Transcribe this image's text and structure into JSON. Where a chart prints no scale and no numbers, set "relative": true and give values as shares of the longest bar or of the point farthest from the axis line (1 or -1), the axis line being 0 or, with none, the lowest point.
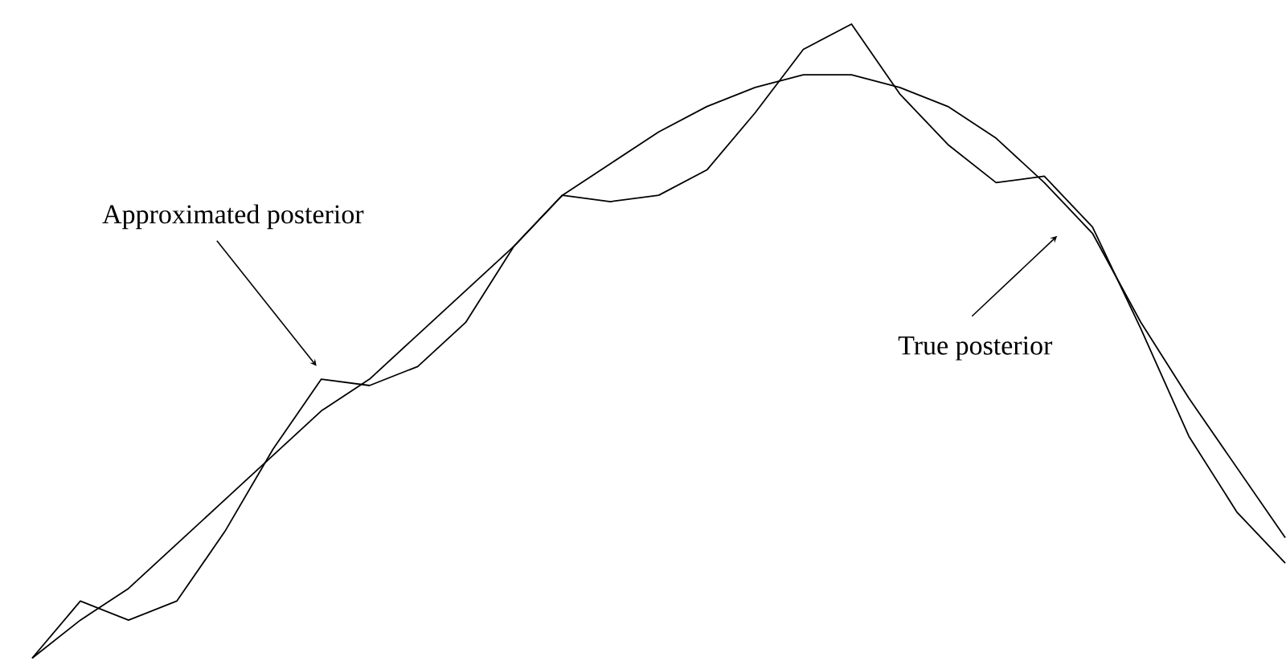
{
  "chart_data": {
    "type": "line",
    "relative": true,
    "categories": [
      null,
      null,
      null,
      null,
      null,
      null,
      null,
      null,
      null,
      null,
      null,
      null,
      null,
      null,
      null,
      null,
      null,
      null,
      null,
      null,
      null,
      null,
      null,
      null,
      null,
      null,
      null
    ],
    "series": [
      {
        "color": "#000000",
        "values": [
          0,
          0.09,
          0.06,
          0.09,
          0.2,
          0.33,
          0.44,
          0.43,
          0.46,
          0.53,
          0.65,
          0.73,
          0.72,
          0.73,
          0.77,
          0.86,
          0.96,
          1,
          0.89,
          0.81,
          0.75,
          0.76,
          0.68,
          0.52,
          0.35,
          0.23,
          0.15
        ]
      },
      {
        "color": "#000000",
        "values": [
          0,
          0.06,
          0.11,
          0.18,
          0.25,
          0.32,
          0.39,
          0.44,
          0.51,
          0.58,
          0.65,
          0.73,
          0.78,
          0.83,
          0.87,
          0.9,
          0.92,
          0.92,
          0.9,
          0.87,
          0.82,
          0.75,
          0.67,
          0.53,
          0.41,
          0.3,
          0.19
        ]
      }
    ],
    "annotations": [
      "Approximated posterior",
      "True posterior"
    ]
  }
}
